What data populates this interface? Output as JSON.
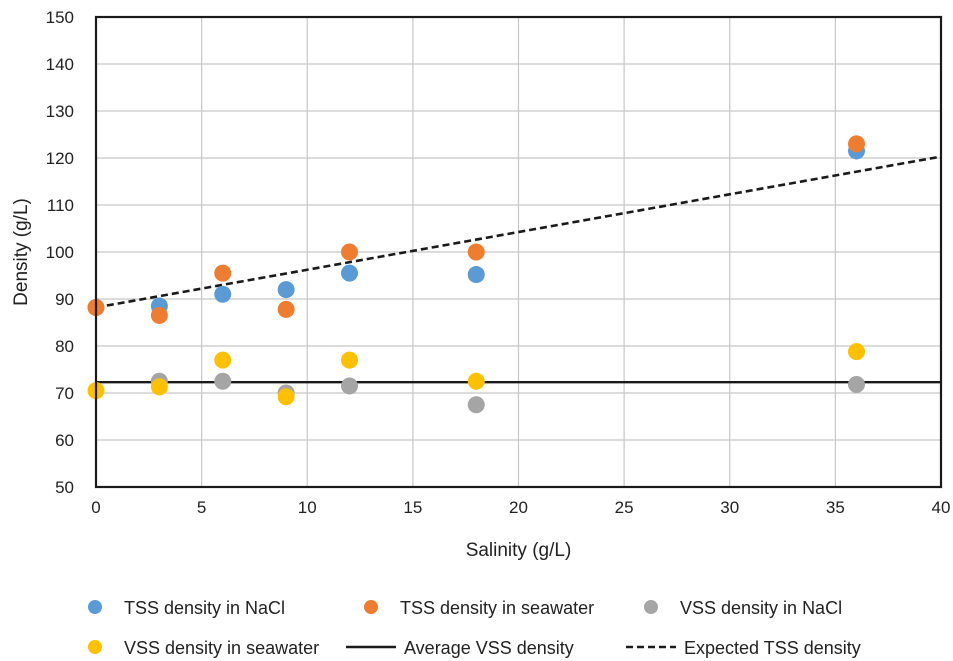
{
  "chart_data": {
    "type": "scatter",
    "title": "",
    "xlabel": "Salinity (g/L)",
    "ylabel": "Density (g/L)",
    "xlim": [
      0,
      40
    ],
    "ylim": [
      50,
      150
    ],
    "xticks": [
      0,
      5,
      10,
      15,
      20,
      25,
      30,
      35,
      40
    ],
    "yticks": [
      50,
      60,
      70,
      80,
      90,
      100,
      110,
      120,
      130,
      140,
      150
    ],
    "grid": true,
    "legend_position": "bottom",
    "series": [
      {
        "name": "TSS density in NaCl",
        "kind": "scatter",
        "color": "#5B9BD5",
        "points": [
          [
            0,
            88.2
          ],
          [
            3,
            88.5
          ],
          [
            6,
            91.0
          ],
          [
            9,
            92.0
          ],
          [
            12,
            95.5
          ],
          [
            18,
            95.2
          ],
          [
            36,
            121.5
          ]
        ]
      },
      {
        "name": "TSS density in seawater",
        "kind": "scatter",
        "color": "#ED7D31",
        "points": [
          [
            0,
            88.2
          ],
          [
            3,
            86.5
          ],
          [
            6,
            95.5
          ],
          [
            9,
            87.8
          ],
          [
            12,
            100.0
          ],
          [
            18,
            100.0
          ],
          [
            36,
            123.0
          ]
        ]
      },
      {
        "name": "VSS density in NaCl",
        "kind": "scatter",
        "color": "#A5A5A5",
        "points": [
          [
            3,
            72.5
          ],
          [
            6,
            72.5
          ],
          [
            9,
            70.0
          ],
          [
            12,
            71.5
          ],
          [
            18,
            67.5
          ],
          [
            36,
            71.8
          ]
        ]
      },
      {
        "name": "VSS density in seawater",
        "kind": "scatter",
        "color": "#FFC000",
        "points": [
          [
            0,
            70.5
          ],
          [
            3,
            71.3
          ],
          [
            6,
            77.0
          ],
          [
            9,
            69.2
          ],
          [
            12,
            77.0
          ],
          [
            18,
            72.5
          ],
          [
            36,
            78.8
          ]
        ]
      },
      {
        "name": "Average VSS density",
        "kind": "line",
        "style": "solid",
        "color": "#1a1a1a",
        "points": [
          [
            0,
            72.3
          ],
          [
            40,
            72.3
          ]
        ]
      },
      {
        "name": "Expected TSS density",
        "kind": "line",
        "style": "dashed",
        "color": "#1a1a1a",
        "points": [
          [
            0,
            88.2
          ],
          [
            40,
            120.3
          ]
        ]
      }
    ]
  }
}
